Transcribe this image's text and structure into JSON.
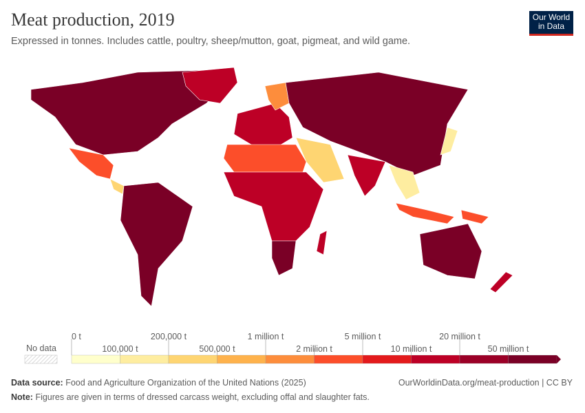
{
  "header": {
    "title": "Meat production, 2019",
    "subtitle": "Expressed in tonnes. Includes cattle, poultry, sheep/mutton, goat, pigmeat, and wild game.",
    "logo": "Our World in Data"
  },
  "legend": {
    "no_data": "No data",
    "top_labels": [
      "0 t",
      "200,000 t",
      "1 million t",
      "5 million t",
      "20 million t"
    ],
    "bottom_labels": [
      "100,000 t",
      "500,000 t",
      "2 million t",
      "10 million t",
      "50 million t"
    ],
    "colors": [
      "#ffffcc",
      "#feeda0",
      "#fed572",
      "#feb24c",
      "#fd8d3c",
      "#fc4e2a",
      "#e31a1c",
      "#bd0026",
      "#9b0027",
      "#7a0026"
    ]
  },
  "map_regions": [
    {
      "name": "north-america",
      "color": "#7a0026"
    },
    {
      "name": "greenland",
      "color": "#bd0026"
    },
    {
      "name": "mexico",
      "color": "#fc4e2a"
    },
    {
      "name": "central-america",
      "color": "#fed572"
    },
    {
      "name": "south-america",
      "color": "#7a0026"
    },
    {
      "name": "europe",
      "color": "#bd0026"
    },
    {
      "name": "scandinavia",
      "color": "#fd8d3c"
    },
    {
      "name": "russia-asia",
      "color": "#7a0026"
    },
    {
      "name": "middle-east",
      "color": "#fed572"
    },
    {
      "name": "india",
      "color": "#bd0026"
    },
    {
      "name": "southeast-asia",
      "color": "#feeda0"
    },
    {
      "name": "north-africa",
      "color": "#fc4e2a"
    },
    {
      "name": "sub-saharan-africa",
      "color": "#bd0026"
    },
    {
      "name": "southern-africa",
      "color": "#7a0026"
    },
    {
      "name": "madagascar",
      "color": "#bd0026"
    },
    {
      "name": "japan",
      "color": "#feeda0"
    },
    {
      "name": "indonesia",
      "color": "#fc4e2a"
    },
    {
      "name": "new-guinea",
      "color": "#fc4e2a"
    },
    {
      "name": "australia",
      "color": "#7a0026"
    },
    {
      "name": "new-zealand",
      "color": "#bd0026"
    }
  ],
  "footer": {
    "source_label": "Data source:",
    "source": "Food and Agriculture Organization of the United Nations (2025)",
    "note_label": "Note:",
    "note": "Figures are given in terms of dressed carcass weight, excluding offal and slaughter fats.",
    "url": "OurWorldinData.org/meat-production | CC BY"
  }
}
